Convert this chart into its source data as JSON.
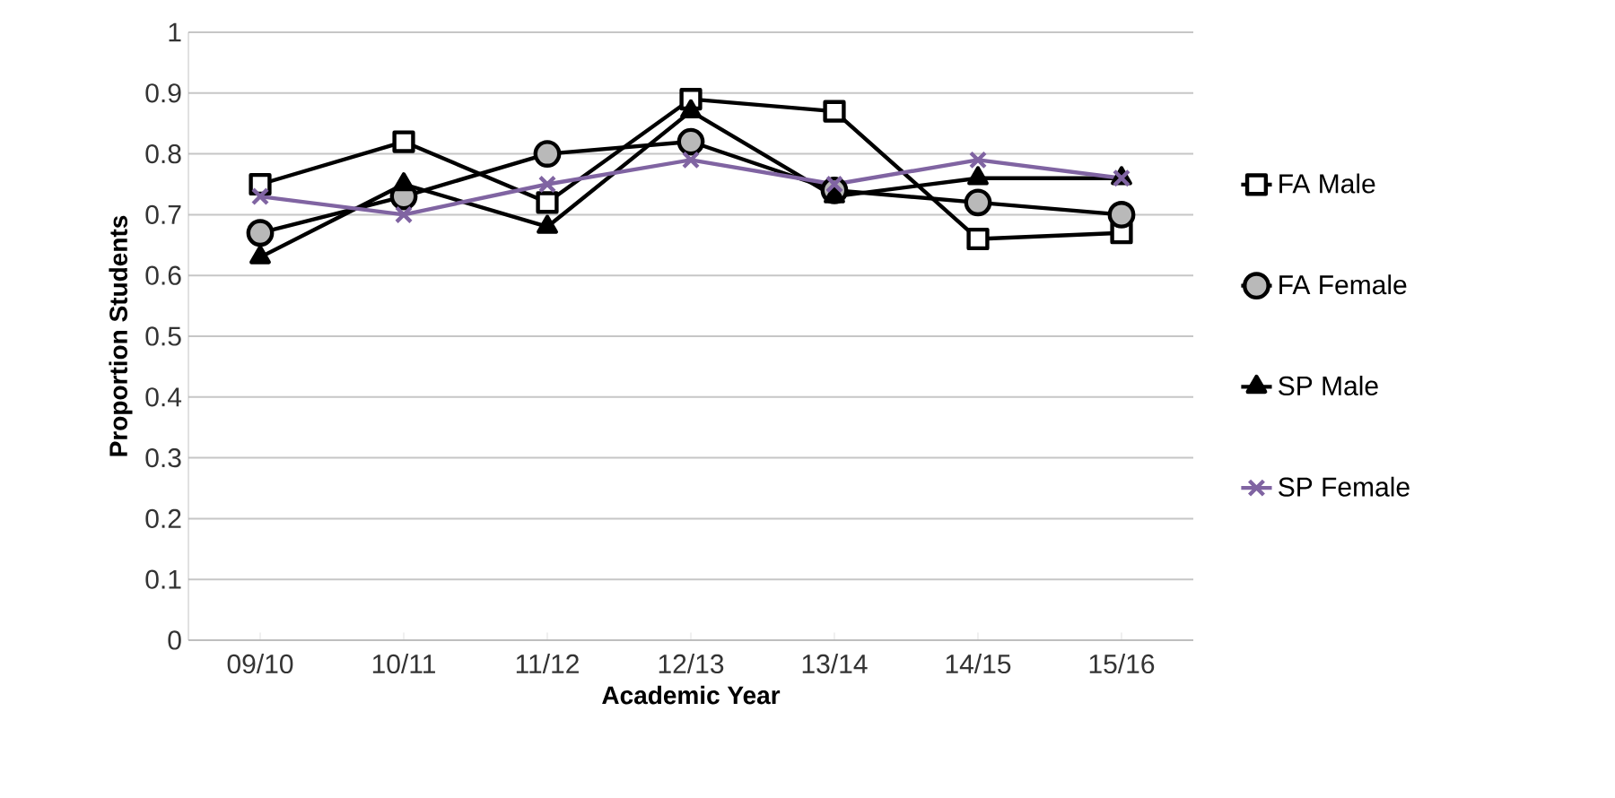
{
  "chart_data": {
    "type": "line",
    "xlabel": "Academic Year",
    "ylabel": "Proportion Students",
    "categories": [
      "09/10",
      "10/11",
      "11/12",
      "12/13",
      "13/14",
      "14/15",
      "15/16"
    ],
    "series": [
      {
        "name": "FA Male",
        "color": "#000000",
        "marker": "square",
        "values": [
          0.75,
          0.82,
          0.72,
          0.89,
          0.87,
          0.66,
          0.67
        ]
      },
      {
        "name": "FA Female",
        "color": "#000000",
        "marker": "circle",
        "values": [
          0.67,
          0.73,
          0.8,
          0.82,
          0.74,
          0.72,
          0.7
        ]
      },
      {
        "name": "SP Male",
        "color": "#000000",
        "marker": "triangle",
        "values": [
          0.63,
          0.75,
          0.68,
          0.87,
          0.73,
          0.76,
          0.76
        ]
      },
      {
        "name": "SP Female",
        "color": "#8064a2",
        "marker": "cross",
        "values": [
          0.73,
          0.7,
          0.75,
          0.79,
          0.75,
          0.79,
          0.76
        ]
      }
    ],
    "ylim": [
      0,
      1
    ],
    "yticks": [
      0,
      0.1,
      0.2,
      0.3,
      0.4,
      0.5,
      0.6,
      0.7,
      0.8,
      0.9,
      1
    ],
    "grid": "y",
    "legend": "right",
    "line_style": "solid"
  }
}
